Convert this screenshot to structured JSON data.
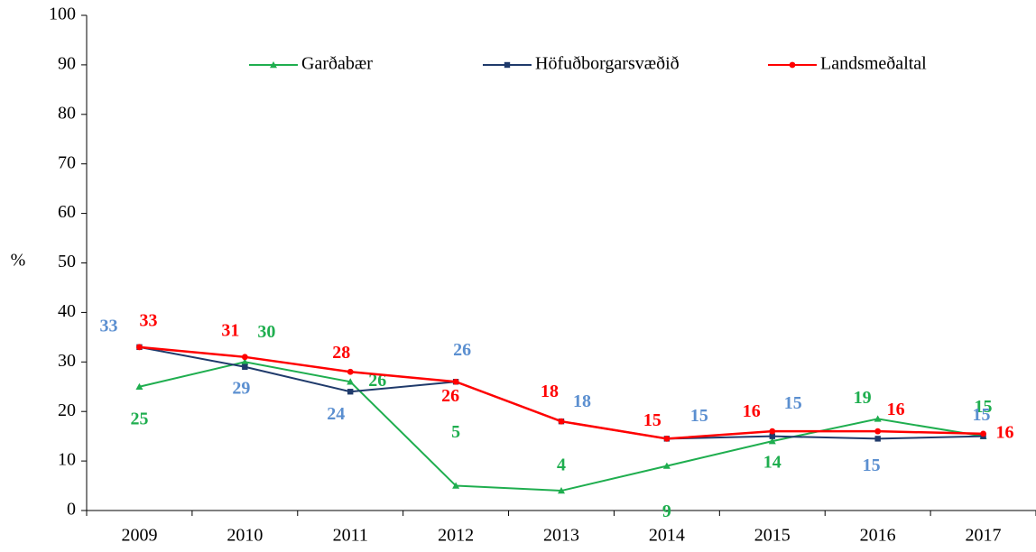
{
  "chart_data": {
    "type": "line",
    "y_label": "%",
    "categories": [
      "2009",
      "2010",
      "2011",
      "2012",
      "2013",
      "2014",
      "2015",
      "2016",
      "2017"
    ],
    "ylim": [
      0,
      100
    ],
    "yticks": [
      0,
      10,
      20,
      30,
      40,
      50,
      60,
      70,
      80,
      90,
      100
    ],
    "legend": "top",
    "series": [
      {
        "name": "Garðabær",
        "color": "#1fae4f",
        "label_color": "#1fae4f",
        "marker": "triangle",
        "values": [
          25,
          30,
          26,
          5,
          4,
          9,
          14,
          18.5,
          15
        ],
        "value_labels": [
          "25",
          "30",
          "26",
          "5",
          "4",
          "9",
          "14",
          "19",
          "15"
        ]
      },
      {
        "name": "Höfuðborgarsvæðið",
        "color": "#1f3a6b",
        "label_color": "#5b8fd0",
        "marker": "square",
        "values": [
          33,
          29,
          24,
          26,
          18,
          14.5,
          15,
          14.5,
          15
        ],
        "value_labels": [
          "33",
          "29",
          "24",
          "26",
          "18",
          "15",
          "15",
          "15",
          "15"
        ]
      },
      {
        "name": "Landsmeðaltal",
        "color": "#ff0000",
        "label_color": "#ff0000",
        "marker": "circle",
        "values": [
          33,
          31,
          28,
          26,
          18,
          14.5,
          16,
          16,
          15.5
        ],
        "value_labels": [
          "33",
          "31",
          "28",
          "26",
          "18",
          "15",
          "16",
          "16",
          "16"
        ]
      }
    ]
  }
}
